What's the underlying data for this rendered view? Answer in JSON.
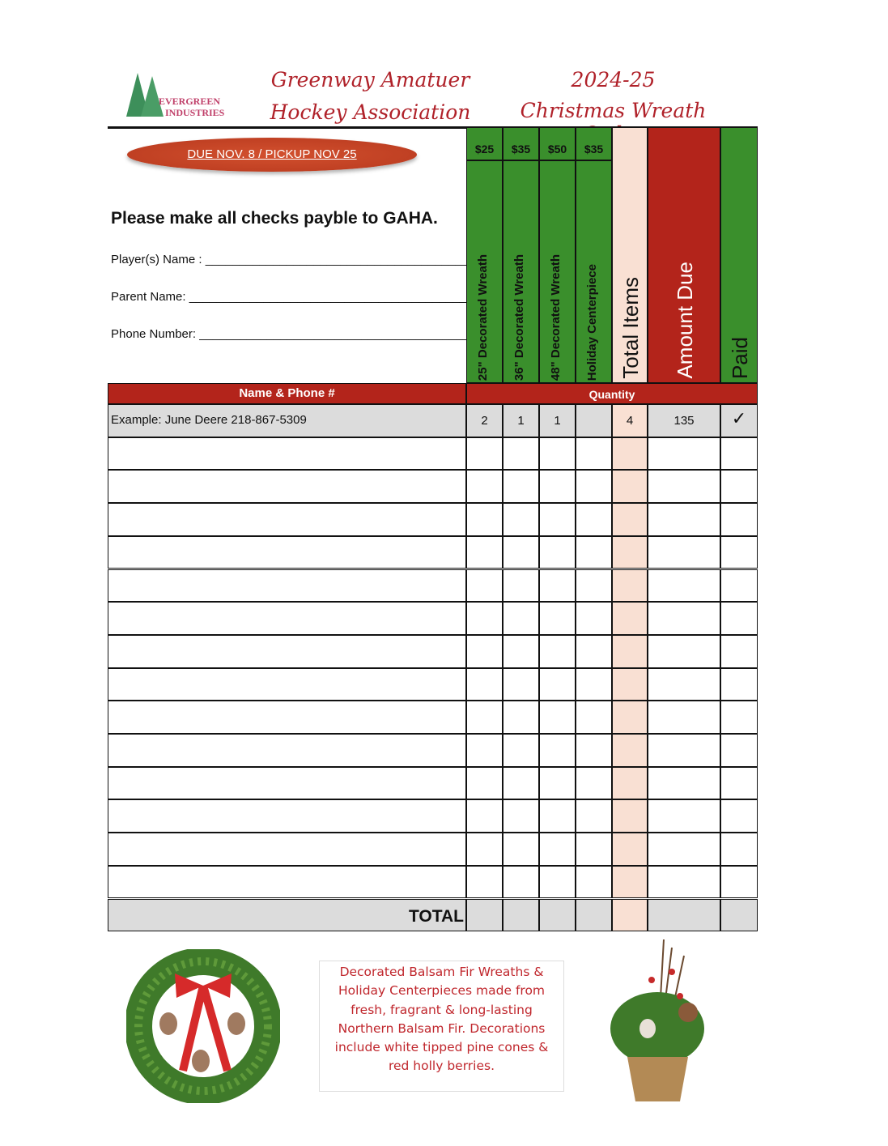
{
  "logo": {
    "line1": "EVERGREEN",
    "line2": "INDUSTRIES"
  },
  "title": {
    "org_line1": "Greenway Amatuer",
    "org_line2": "Hockey Association",
    "season": "2024-25",
    "order": "Christmas Wreath Order"
  },
  "due_banner": "DUE NOV. 8 / PICKUP NOV 25",
  "checks_note": "Please make all checks payble to GAHA.",
  "fields": [
    {
      "label": "Player(s) Name :",
      "blank": "_______________________________________"
    },
    {
      "label": "Parent Name:",
      "blank": "_____________________________________________"
    },
    {
      "label": "Phone Number:",
      "blank": "___________________________________________"
    }
  ],
  "columns": [
    {
      "price": "$25",
      "label": "25\" Decorated Wreath"
    },
    {
      "price": "$35",
      "label": "36\" Decorated Wreath"
    },
    {
      "price": "$50",
      "label": "48\" Decorated Wreath"
    },
    {
      "price": "$35",
      "label": "Holiday Centerpiece"
    }
  ],
  "total_items_label": "Total Items",
  "amount_due_label": "Amount Due",
  "paid_label": "Paid",
  "name_header": "Name & Phone #",
  "quantity_header": "Quantity",
  "example": {
    "name": "Example:  June Deere  218-867-5309",
    "q1": "2",
    "q2": "1",
    "q3": "1",
    "q4": "",
    "total": "4",
    "amount": "135",
    "paid": "✓"
  },
  "total_label": "TOTAL",
  "description": "Decorated Balsam Fir Wreaths & Holiday Centerpieces made from fresh, fragrant & long-lasting Northern Balsam Fir.  Decorations include white tipped pine cones & red holly berries.",
  "colors": {
    "green": "#3a8f2c",
    "red": "#b3241b",
    "peach": "#f9e0d3",
    "gray": "#dcdcdc"
  }
}
